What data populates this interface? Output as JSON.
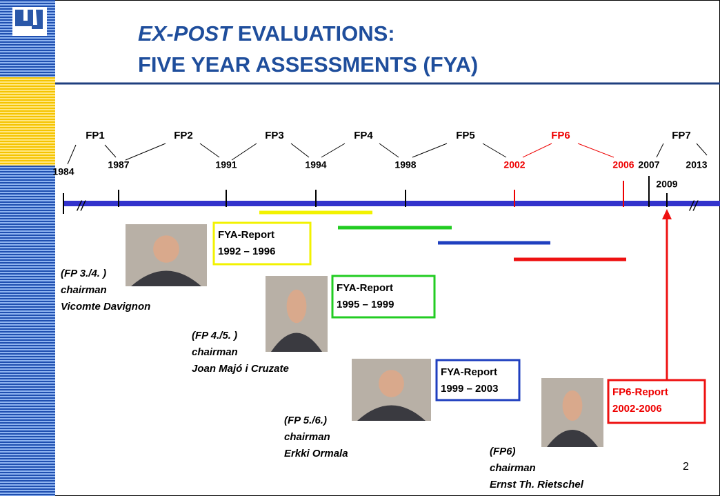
{
  "header": {
    "title_italic": "EX-POST",
    "title_line1": "EVALUATIONS:",
    "title_line2": "FIVE YEAR ASSESSMENTS (FYA)"
  },
  "timeline": {
    "programmes": [
      "FP1",
      "FP2",
      "FP3",
      "FP4",
      "FP5",
      "FP6",
      "FP7"
    ],
    "years": [
      "1984",
      "1987",
      "1991",
      "1994",
      "1998",
      "2002",
      "2006",
      "2007",
      "2009",
      "2013"
    ]
  },
  "reports": [
    {
      "lines": [
        "FYA-Report",
        "1992 – 1996"
      ]
    },
    {
      "lines": [
        "FYA-Report",
        "1995 – 1999"
      ]
    },
    {
      "lines": [
        "FYA-Report",
        "1999 – 2003"
      ]
    },
    {
      "lines": [
        "FP6-Report",
        "2002-2006"
      ]
    }
  ],
  "chairmen": [
    {
      "lines": [
        "(FP 3./4. )",
        "chairman",
        "Vicomte Davignon"
      ]
    },
    {
      "lines": [
        "(FP 4./5. )",
        "chairman",
        "Joan Majó i Cruzate"
      ]
    },
    {
      "lines": [
        "(FP 5./6.)",
        "chairman",
        "Erkki Ormala"
      ]
    },
    {
      "lines": [
        "(FP6)",
        "chairman",
        "Ernst Th. Rietschel"
      ]
    }
  ],
  "page_number": "2"
}
